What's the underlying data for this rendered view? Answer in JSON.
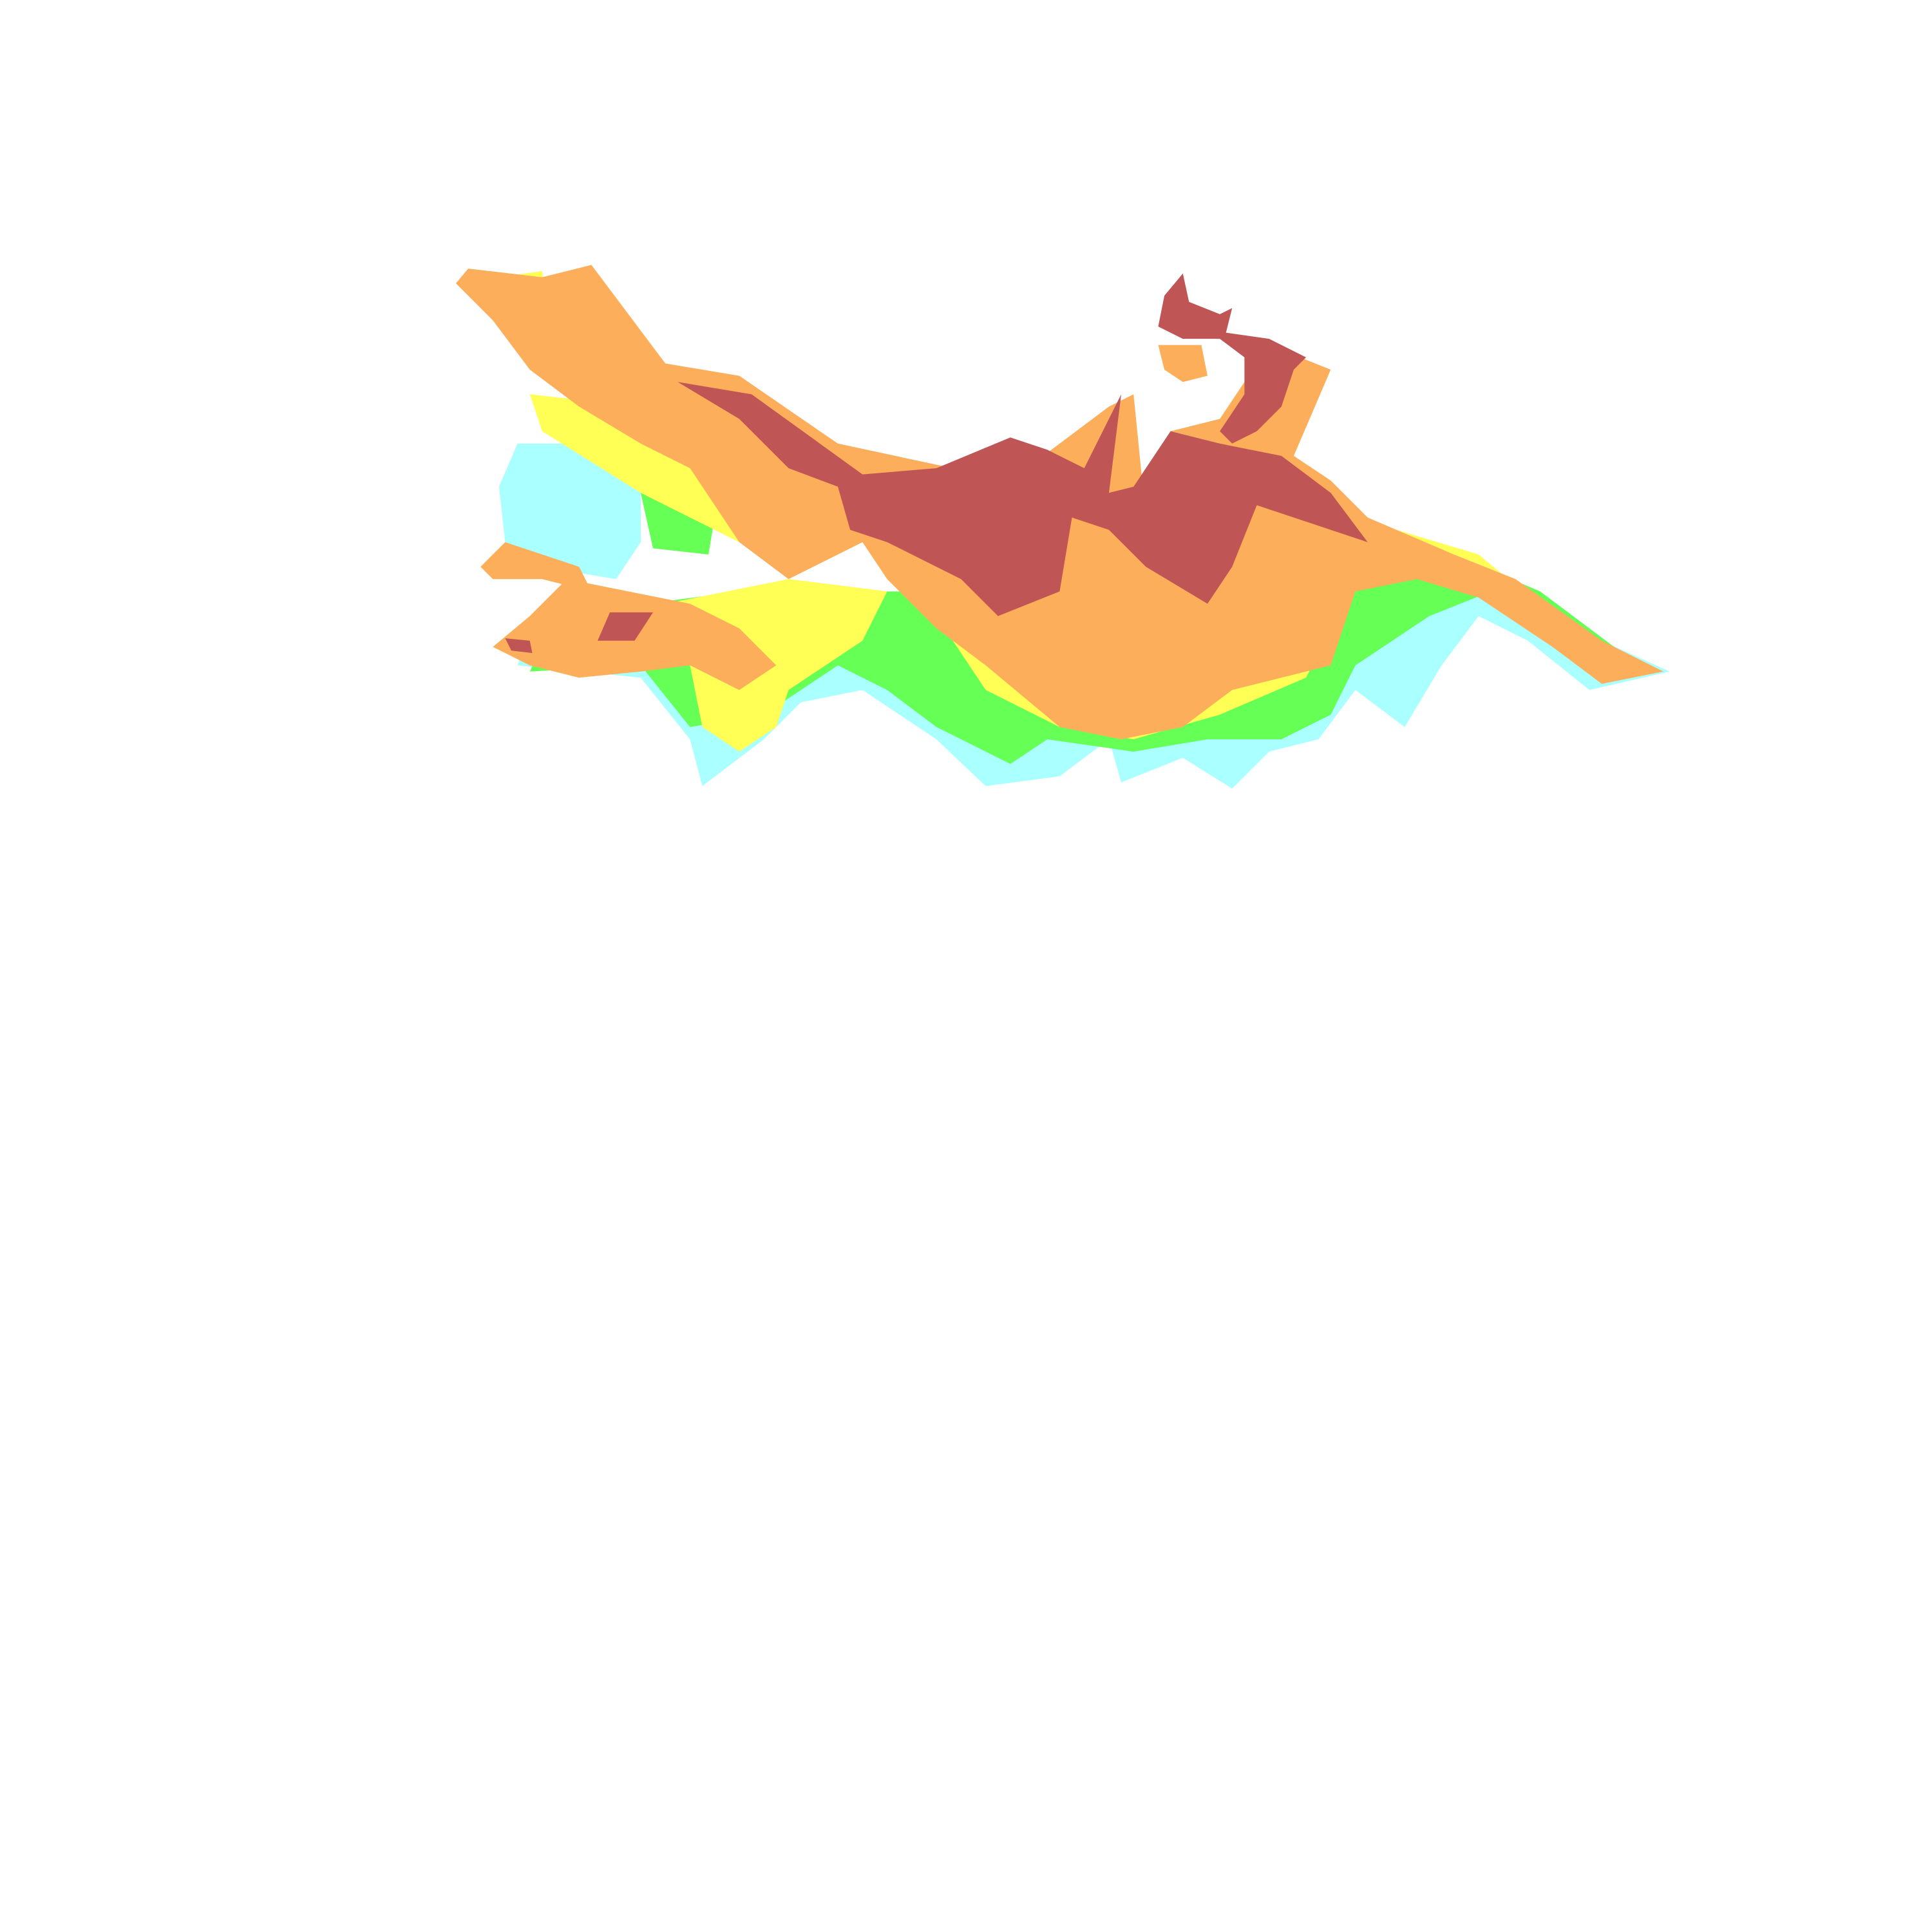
{
  "map": {
    "classes": [
      {
        "id": "class-1",
        "color": "#aaffff"
      },
      {
        "id": "class-2",
        "color": "#66ff55"
      },
      {
        "id": "class-3",
        "color": "#ffff55"
      },
      {
        "id": "class-4",
        "color": "#fdae5b"
      },
      {
        "id": "class-5",
        "color": "#c05555"
      }
    ],
    "background": "#ffffff"
  }
}
